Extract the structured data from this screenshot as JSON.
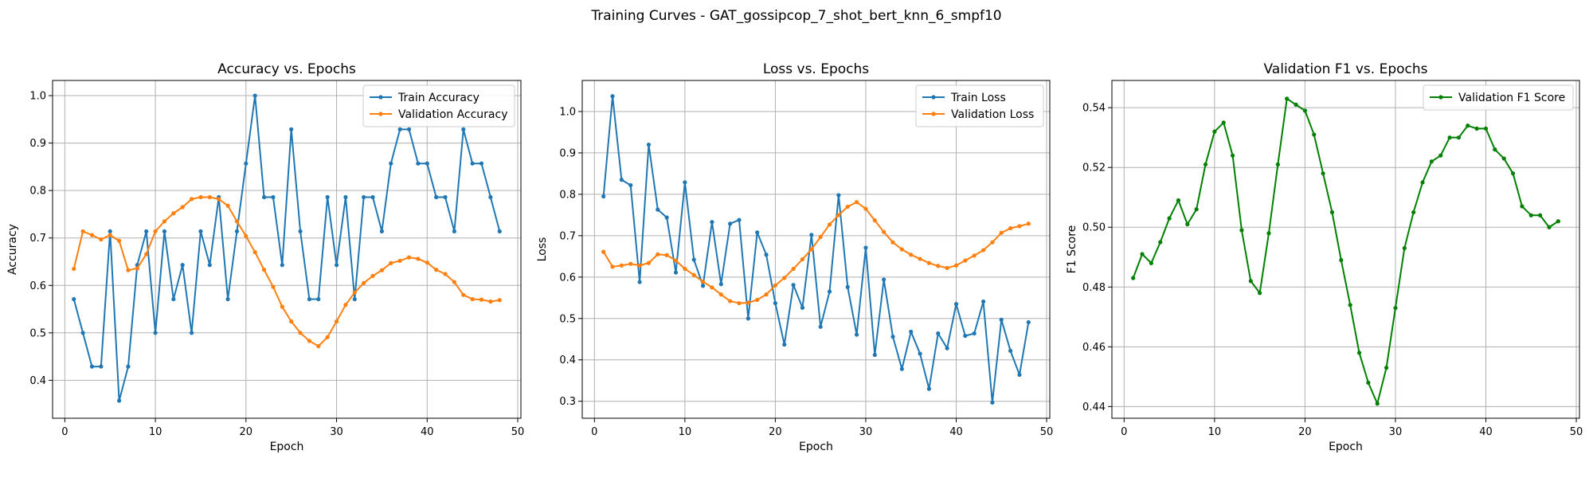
{
  "title": "Training Curves - GAT_gossipcop_7_shot_bert_knn_6_smpf10",
  "colors": {
    "train": "#1f77b4",
    "val": "#ff7f0e",
    "f1": "#008000",
    "grid": "#b0b0b0"
  },
  "chart_data": [
    {
      "type": "line",
      "title": "Accuracy vs. Epochs",
      "xlabel": "Epoch",
      "ylabel": "Accuracy",
      "xlim": [
        -1.35,
        50.35
      ],
      "ylim": [
        0.32,
        1.032
      ],
      "xticks": [
        0,
        10,
        20,
        30,
        40,
        50
      ],
      "yticks": [
        0.4,
        0.5,
        0.6,
        0.7,
        0.8,
        0.9,
        1.0
      ],
      "ytick_labels": [
        "0.4",
        "0.5",
        "0.6",
        "0.7",
        "0.8",
        "0.9",
        "1.0"
      ],
      "grid": true,
      "legend": "top-right",
      "x": [
        1,
        2,
        3,
        4,
        5,
        6,
        7,
        8,
        9,
        10,
        11,
        12,
        13,
        14,
        15,
        16,
        17,
        18,
        19,
        20,
        21,
        22,
        23,
        24,
        25,
        26,
        27,
        28,
        29,
        30,
        31,
        32,
        33,
        34,
        35,
        36,
        37,
        38,
        39,
        40,
        41,
        42,
        43,
        44,
        45,
        46,
        47,
        48
      ],
      "series": [
        {
          "name": "Train Accuracy",
          "color_key": "train",
          "values": [
            0.571,
            0.5,
            0.429,
            0.429,
            0.714,
            0.357,
            0.429,
            0.643,
            0.714,
            0.5,
            0.714,
            0.571,
            0.643,
            0.5,
            0.714,
            0.643,
            0.786,
            0.571,
            0.714,
            0.857,
            1.0,
            0.786,
            0.786,
            0.643,
            0.929,
            0.714,
            0.571,
            0.571,
            0.786,
            0.643,
            0.786,
            0.571,
            0.786,
            0.786,
            0.714,
            0.857,
            0.929,
            0.929,
            0.857,
            0.857,
            0.786,
            0.786,
            0.714,
            0.929,
            0.857,
            0.857,
            0.786,
            0.714
          ]
        },
        {
          "name": "Validation Accuracy",
          "color_key": "val",
          "values": [
            0.635,
            0.714,
            0.706,
            0.697,
            0.706,
            0.694,
            0.632,
            0.636,
            0.666,
            0.714,
            0.735,
            0.752,
            0.765,
            0.782,
            0.786,
            0.786,
            0.782,
            0.768,
            0.735,
            0.704,
            0.67,
            0.633,
            0.597,
            0.555,
            0.524,
            0.5,
            0.483,
            0.472,
            0.491,
            0.524,
            0.559,
            0.585,
            0.605,
            0.62,
            0.632,
            0.647,
            0.652,
            0.659,
            0.656,
            0.648,
            0.633,
            0.624,
            0.607,
            0.58,
            0.571,
            0.57,
            0.566,
            0.569
          ]
        }
      ]
    },
    {
      "type": "line",
      "title": "Loss vs. Epochs",
      "xlabel": "Epoch",
      "ylabel": "Loss",
      "xlim": [
        -1.35,
        50.35
      ],
      "ylim": [
        0.259,
        1.075
      ],
      "xticks": [
        0,
        10,
        20,
        30,
        40,
        50
      ],
      "yticks": [
        0.3,
        0.4,
        0.5,
        0.6,
        0.7,
        0.8,
        0.9,
        1.0
      ],
      "ytick_labels": [
        "0.3",
        "0.4",
        "0.5",
        "0.6",
        "0.7",
        "0.8",
        "0.9",
        "1.0"
      ],
      "grid": true,
      "legend": "top-right",
      "x": [
        1,
        2,
        3,
        4,
        5,
        6,
        7,
        8,
        9,
        10,
        11,
        12,
        13,
        14,
        15,
        16,
        17,
        18,
        19,
        20,
        21,
        22,
        23,
        24,
        25,
        26,
        27,
        28,
        29,
        30,
        31,
        32,
        33,
        34,
        35,
        36,
        37,
        38,
        39,
        40,
        41,
        42,
        43,
        44,
        45,
        46,
        47,
        48
      ],
      "series": [
        {
          "name": "Train Loss",
          "color_key": "train",
          "values": [
            0.795,
            1.037,
            0.835,
            0.822,
            0.588,
            0.92,
            0.763,
            0.744,
            0.611,
            0.829,
            0.642,
            0.579,
            0.733,
            0.583,
            0.729,
            0.738,
            0.5,
            0.708,
            0.654,
            0.537,
            0.437,
            0.581,
            0.526,
            0.702,
            0.48,
            0.565,
            0.798,
            0.576,
            0.461,
            0.671,
            0.412,
            0.594,
            0.456,
            0.378,
            0.468,
            0.415,
            0.33,
            0.464,
            0.428,
            0.535,
            0.458,
            0.464,
            0.541,
            0.297,
            0.497,
            0.422,
            0.364,
            0.491
          ]
        },
        {
          "name": "Validation Loss",
          "color_key": "val",
          "values": [
            0.661,
            0.625,
            0.628,
            0.632,
            0.628,
            0.634,
            0.655,
            0.653,
            0.64,
            0.62,
            0.605,
            0.589,
            0.575,
            0.558,
            0.542,
            0.537,
            0.538,
            0.545,
            0.558,
            0.58,
            0.598,
            0.62,
            0.643,
            0.667,
            0.697,
            0.727,
            0.75,
            0.77,
            0.781,
            0.765,
            0.737,
            0.709,
            0.684,
            0.667,
            0.654,
            0.644,
            0.634,
            0.627,
            0.622,
            0.628,
            0.64,
            0.652,
            0.665,
            0.684,
            0.707,
            0.718,
            0.723,
            0.729
          ]
        }
      ]
    },
    {
      "type": "line",
      "title": "Validation F1 vs. Epochs",
      "xlabel": "Epoch",
      "ylabel": "F1 Score",
      "xlim": [
        -1.35,
        50.35
      ],
      "ylim": [
        0.4361,
        0.5491
      ],
      "xticks": [
        0,
        10,
        20,
        30,
        40,
        50
      ],
      "yticks": [
        0.44,
        0.46,
        0.48,
        0.5,
        0.52,
        0.54
      ],
      "ytick_labels": [
        "0.44",
        "0.46",
        "0.48",
        "0.50",
        "0.52",
        "0.54"
      ],
      "grid": true,
      "legend": "top-right",
      "x": [
        1,
        2,
        3,
        4,
        5,
        6,
        7,
        8,
        9,
        10,
        11,
        12,
        13,
        14,
        15,
        16,
        17,
        18,
        19,
        20,
        21,
        22,
        23,
        24,
        25,
        26,
        27,
        28,
        29,
        30,
        31,
        32,
        33,
        34,
        35,
        36,
        37,
        38,
        39,
        40,
        41,
        42,
        43,
        44,
        45,
        46,
        47,
        48
      ],
      "series": [
        {
          "name": "Validation F1 Score",
          "color_key": "f1",
          "values": [
            0.483,
            0.491,
            0.488,
            0.495,
            0.503,
            0.509,
            0.501,
            0.506,
            0.521,
            0.532,
            0.535,
            0.524,
            0.499,
            0.482,
            0.478,
            0.498,
            0.521,
            0.543,
            0.541,
            0.539,
            0.531,
            0.518,
            0.505,
            0.489,
            0.474,
            0.458,
            0.448,
            0.441,
            0.453,
            0.473,
            0.493,
            0.505,
            0.515,
            0.522,
            0.524,
            0.53,
            0.53,
            0.534,
            0.533,
            0.533,
            0.526,
            0.523,
            0.518,
            0.507,
            0.504,
            0.504,
            0.5,
            0.502
          ]
        }
      ]
    }
  ]
}
